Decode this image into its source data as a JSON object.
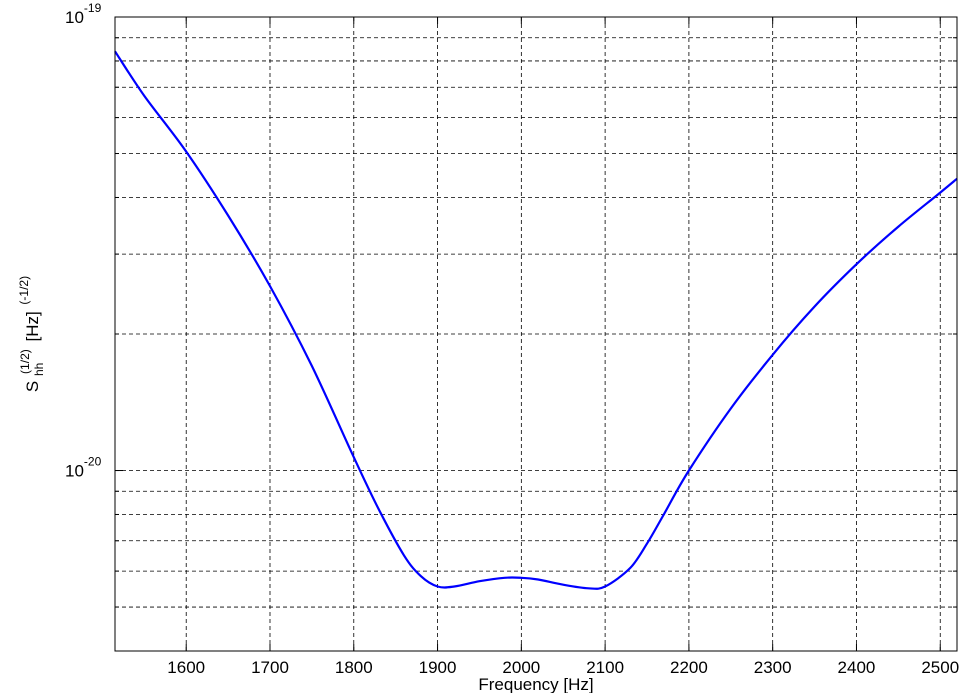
{
  "chart_data": {
    "type": "line",
    "title": "",
    "xlabel": "Frequency [Hz]",
    "ylabel": {
      "base": "S",
      "sub": "hh",
      "sup": "(1/2)",
      "unit": "[Hz]",
      "unit_sup": "(-1/2)"
    },
    "xlim": [
      1515,
      2520
    ],
    "ylim": [
      4e-21,
      1e-19
    ],
    "yscale": "log",
    "grid": true,
    "x_ticks": [
      "1600",
      "1700",
      "1800",
      "1900",
      "2000",
      "2100",
      "2200",
      "2300",
      "2400",
      "2500"
    ],
    "y_ticks": [
      {
        "value": 1e-19,
        "base": "10",
        "exp": "-19"
      },
      {
        "value": 1e-20,
        "base": "10",
        "exp": "-20"
      }
    ],
    "series": [
      {
        "color": "#0000ff",
        "x": [
          1515,
          1550,
          1600,
          1650,
          1700,
          1750,
          1800,
          1830,
          1860,
          1880,
          1900,
          1920,
          1950,
          1980,
          2000,
          2020,
          2050,
          2080,
          2100,
          2130,
          2150,
          2170,
          2200,
          2250,
          2300,
          2350,
          2400,
          2450,
          2500,
          2520
        ],
        "y": [
          8.4e-20,
          6.7e-20,
          5.05e-20,
          3.65e-20,
          2.55e-20,
          1.7e-20,
          1.07e-20,
          8.2e-21,
          6.5e-21,
          5.85e-21,
          5.55e-21,
          5.55e-21,
          5.7e-21,
          5.8e-21,
          5.8e-21,
          5.75e-21,
          5.6e-21,
          5.5e-21,
          5.55e-21,
          6.1e-21,
          6.9e-21,
          8e-21,
          1e-20,
          1.37e-20,
          1.8e-20,
          2.3e-20,
          2.85e-20,
          3.45e-20,
          4.1e-20,
          4.4e-20
        ]
      }
    ]
  }
}
